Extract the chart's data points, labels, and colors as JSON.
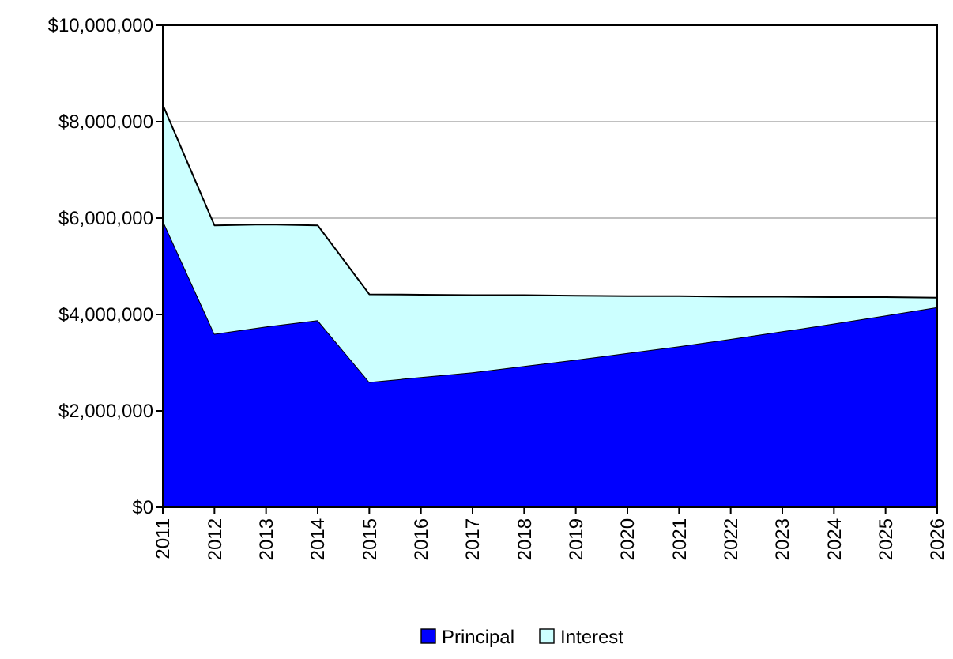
{
  "chart_data": {
    "type": "area",
    "stacked": true,
    "categories": [
      "2011",
      "2012",
      "2013",
      "2014",
      "2015",
      "2016",
      "2017",
      "2018",
      "2019",
      "2020",
      "2021",
      "2022",
      "2023",
      "2024",
      "2025",
      "2026"
    ],
    "series": [
      {
        "name": "Principal",
        "color": "#0000ff",
        "values": [
          5950000,
          3600000,
          3750000,
          3880000,
          2600000,
          2700000,
          2800000,
          2930000,
          3060000,
          3200000,
          3340000,
          3490000,
          3650000,
          3810000,
          3980000,
          4150000
        ]
      },
      {
        "name": "Interest",
        "color": "#ccffff",
        "values": [
          2400000,
          2250000,
          2120000,
          1970000,
          1820000,
          1710000,
          1600000,
          1470000,
          1330000,
          1180000,
          1040000,
          880000,
          720000,
          550000,
          380000,
          200000
        ]
      }
    ],
    "ylim": [
      0,
      10000000
    ],
    "yticks": [
      {
        "value": 0,
        "label": "$0"
      },
      {
        "value": 2000000,
        "label": "$2,000,000"
      },
      {
        "value": 4000000,
        "label": "$4,000,000"
      },
      {
        "value": 6000000,
        "label": "$6,000,000"
      },
      {
        "value": 8000000,
        "label": "$8,000,000"
      },
      {
        "value": 10000000,
        "label": "$10,000,000"
      }
    ],
    "grid": "y",
    "legend": "bottom"
  }
}
